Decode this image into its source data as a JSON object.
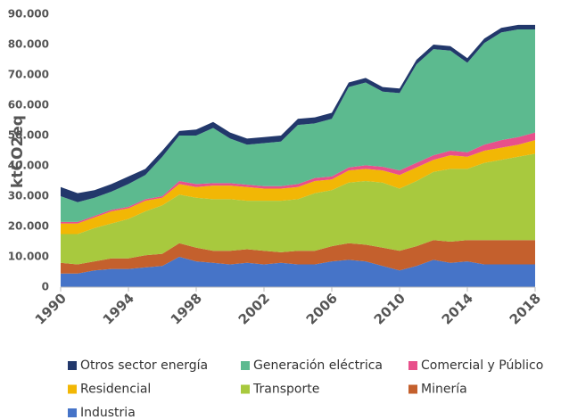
{
  "chart_data": {
    "type": "stacked_area",
    "y_label": "ktCO2eq",
    "x": [
      1990,
      1991,
      1992,
      1993,
      1994,
      1995,
      1996,
      1997,
      1998,
      1999,
      2000,
      2001,
      2002,
      2003,
      2004,
      2005,
      2006,
      2007,
      2008,
      2009,
      2010,
      2011,
      2012,
      2013,
      2014,
      2015,
      2016,
      2017,
      2018
    ],
    "xlim": [
      1990,
      2018
    ],
    "xticks": [
      1990,
      1994,
      1998,
      2002,
      2006,
      2010,
      2014,
      2018
    ],
    "ylim": [
      0,
      90000
    ],
    "yticks": [
      {
        "value": 0,
        "label": "0"
      },
      {
        "value": 10000,
        "label": "10.000"
      },
      {
        "value": 20000,
        "label": "20.000"
      },
      {
        "value": 30000,
        "label": "30.000"
      },
      {
        "value": 40000,
        "label": "40.000"
      },
      {
        "value": 50000,
        "label": "50.000"
      },
      {
        "value": 60000,
        "label": "60.000"
      },
      {
        "value": 70000,
        "label": "70.000"
      },
      {
        "value": 80000,
        "label": "80.000"
      },
      {
        "value": 90000,
        "label": "90.000"
      }
    ],
    "legend": "bottom",
    "series": [
      {
        "name": "Otros sector energía",
        "color": "#22386b",
        "values": [
          3000,
          3000,
          2500,
          2500,
          2500,
          2000,
          2000,
          1500,
          2000,
          2000,
          2000,
          2000,
          2000,
          2000,
          2000,
          2000,
          2000,
          1500,
          1500,
          1500,
          1500,
          1500,
          1500,
          1500,
          1500,
          1500,
          1500,
          1500,
          1500
        ]
      },
      {
        "name": "Generación eléctrica",
        "color": "#5cba8f",
        "values": [
          8500,
          6500,
          6000,
          6000,
          7500,
          8000,
          13000,
          15000,
          16000,
          18200,
          14700,
          13200,
          14200,
          14700,
          19500,
          18000,
          19000,
          26500,
          27300,
          24800,
          25500,
          32500,
          35000,
          33000,
          29500,
          33500,
          35500,
          35500,
          34000
        ]
      },
      {
        "name": "Comercial y Público",
        "color": "#e8508b",
        "values": [
          500,
          500,
          500,
          500,
          500,
          500,
          500,
          1000,
          1000,
          800,
          800,
          800,
          800,
          800,
          1000,
          1000,
          1000,
          1000,
          1200,
          1200,
          1500,
          1500,
          1500,
          1500,
          1500,
          2000,
          2500,
          2500,
          2500
        ]
      },
      {
        "name": "Residencial",
        "color": "#f2b705",
        "values": [
          3500,
          3500,
          3500,
          4000,
          3500,
          3500,
          2500,
          3500,
          3500,
          4500,
          4500,
          4500,
          4000,
          4000,
          4000,
          4000,
          3500,
          4000,
          4000,
          4000,
          4500,
          4500,
          4000,
          4500,
          4000,
          4000,
          4000,
          4000,
          4500
        ]
      },
      {
        "name": "Transporte",
        "color": "#a8c93e",
        "values": [
          9500,
          10000,
          11000,
          11500,
          13000,
          14500,
          16000,
          16000,
          16500,
          17000,
          17000,
          16000,
          16500,
          17000,
          17000,
          19000,
          18500,
          20000,
          21000,
          21500,
          20500,
          21500,
          22500,
          24000,
          23500,
          25500,
          26500,
          27500,
          28500
        ]
      },
      {
        "name": "Minería",
        "color": "#c4602d",
        "values": [
          3500,
          3000,
          3000,
          3500,
          3500,
          4000,
          4000,
          4500,
          4500,
          4000,
          4500,
          4500,
          4500,
          3500,
          4500,
          4500,
          5000,
          5500,
          5500,
          6000,
          6500,
          6500,
          6500,
          7000,
          7000,
          8000,
          8000,
          8000,
          8000
        ]
      },
      {
        "name": "Industria",
        "color": "#4674c8",
        "values": [
          4500,
          4500,
          5500,
          6000,
          6000,
          6500,
          7000,
          10000,
          8500,
          8000,
          7500,
          8000,
          7500,
          8000,
          7500,
          7500,
          8500,
          9000,
          8500,
          7000,
          5500,
          7000,
          9000,
          8000,
          8500,
          7500,
          7500,
          7500,
          7500
        ]
      }
    ]
  }
}
